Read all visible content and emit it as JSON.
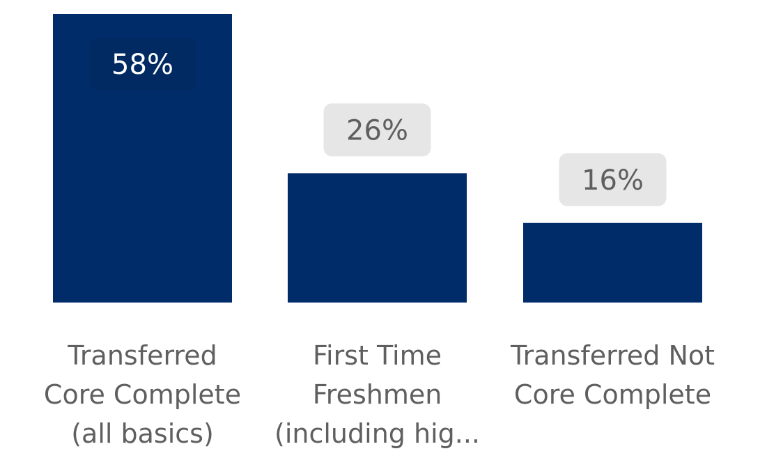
{
  "chart_data": {
    "type": "bar",
    "categories": [
      [
        "Transferred",
        "Core Complete",
        "(all basics)"
      ],
      [
        "First Time",
        "Freshmen",
        "(including hig..."
      ],
      [
        "Transferred Not",
        "Core Complete"
      ]
    ],
    "values": [
      58,
      26,
      16
    ],
    "data_labels": [
      "58%",
      "26%",
      "16%"
    ],
    "ylim": [
      0,
      58
    ],
    "grid": false,
    "colors": {
      "bar": "#002d6a",
      "label_inside_text": "#ffffff",
      "label_inside_bg": "#012a63",
      "label_outside_text": "#5f5f5f",
      "label_outside_bg": "#e6e6e6",
      "category_text": "#5f5f5f"
    }
  }
}
